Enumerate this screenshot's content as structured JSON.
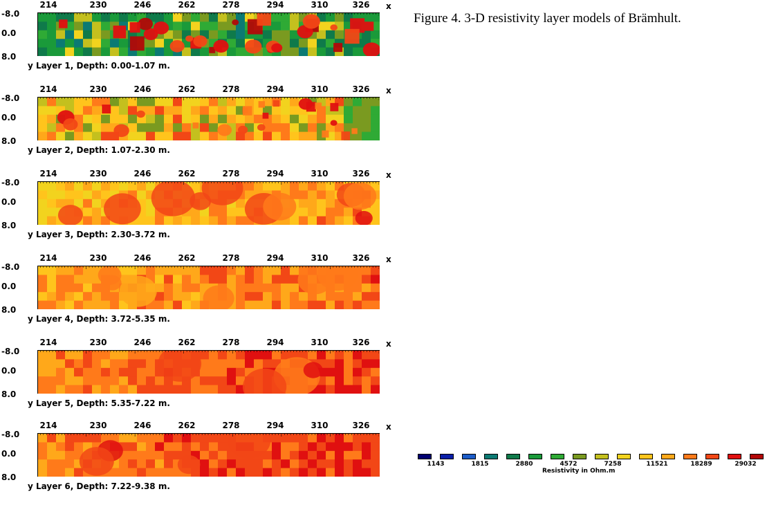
{
  "caption": "Figure 4. 3-D resistivity layer models of Brämhult.",
  "x_axis": {
    "label": "x",
    "ticks": [
      "214",
      "230",
      "246",
      "262",
      "278",
      "294",
      "310",
      "326"
    ]
  },
  "y_axis": {
    "label": "y",
    "ticks": [
      "-8.0",
      "0.0",
      "8.0"
    ]
  },
  "layers": [
    {
      "title": "Layer 1, Depth: 0.00-1.07 m."
    },
    {
      "title": "Layer 2, Depth: 1.07-2.30 m."
    },
    {
      "title": "Layer 3, Depth: 2.30-3.72 m."
    },
    {
      "title": "Layer 4, Depth: 3.72-5.35 m."
    },
    {
      "title": "Layer 5, Depth: 5.35-7.22 m."
    },
    {
      "title": "Layer 6, Depth: 7.22-9.38 m."
    }
  ],
  "legend": {
    "title": "Resistivity in Ohm.m",
    "values": [
      "1143",
      "1815",
      "2880",
      "4572",
      "7258",
      "11521",
      "18289",
      "29032"
    ],
    "colors": [
      "#000070",
      "#0a1fa8",
      "#1c5cc8",
      "#0b7a73",
      "#0f7a4a",
      "#1a9a3a",
      "#2faa35",
      "#7a9a20",
      "#c4c01e",
      "#f2d31e",
      "#ffc41c",
      "#ffa81a",
      "#ff7a1a",
      "#f24716",
      "#e01010",
      "#b20808"
    ]
  },
  "chart_data": {
    "type": "heatmap",
    "title": "",
    "xlabel": "x",
    "ylabel": "y",
    "xlim": [
      214,
      326
    ],
    "ylim": [
      -8.0,
      8.0
    ],
    "panels": [
      "Layer 1, Depth: 0.00-1.07 m.",
      "Layer 2, Depth: 1.07-2.30 m.",
      "Layer 3, Depth: 2.30-3.72 m.",
      "Layer 4, Depth: 3.72-5.35 m.",
      "Layer 5, Depth: 5.35-7.22 m.",
      "Layer 6, Depth: 7.22-9.38 m."
    ],
    "color_scale_values": [
      1143,
      1815,
      2880,
      4572,
      7258,
      11521,
      18289,
      29032
    ],
    "color_scale_label": "Resistivity in Ohm.m"
  }
}
